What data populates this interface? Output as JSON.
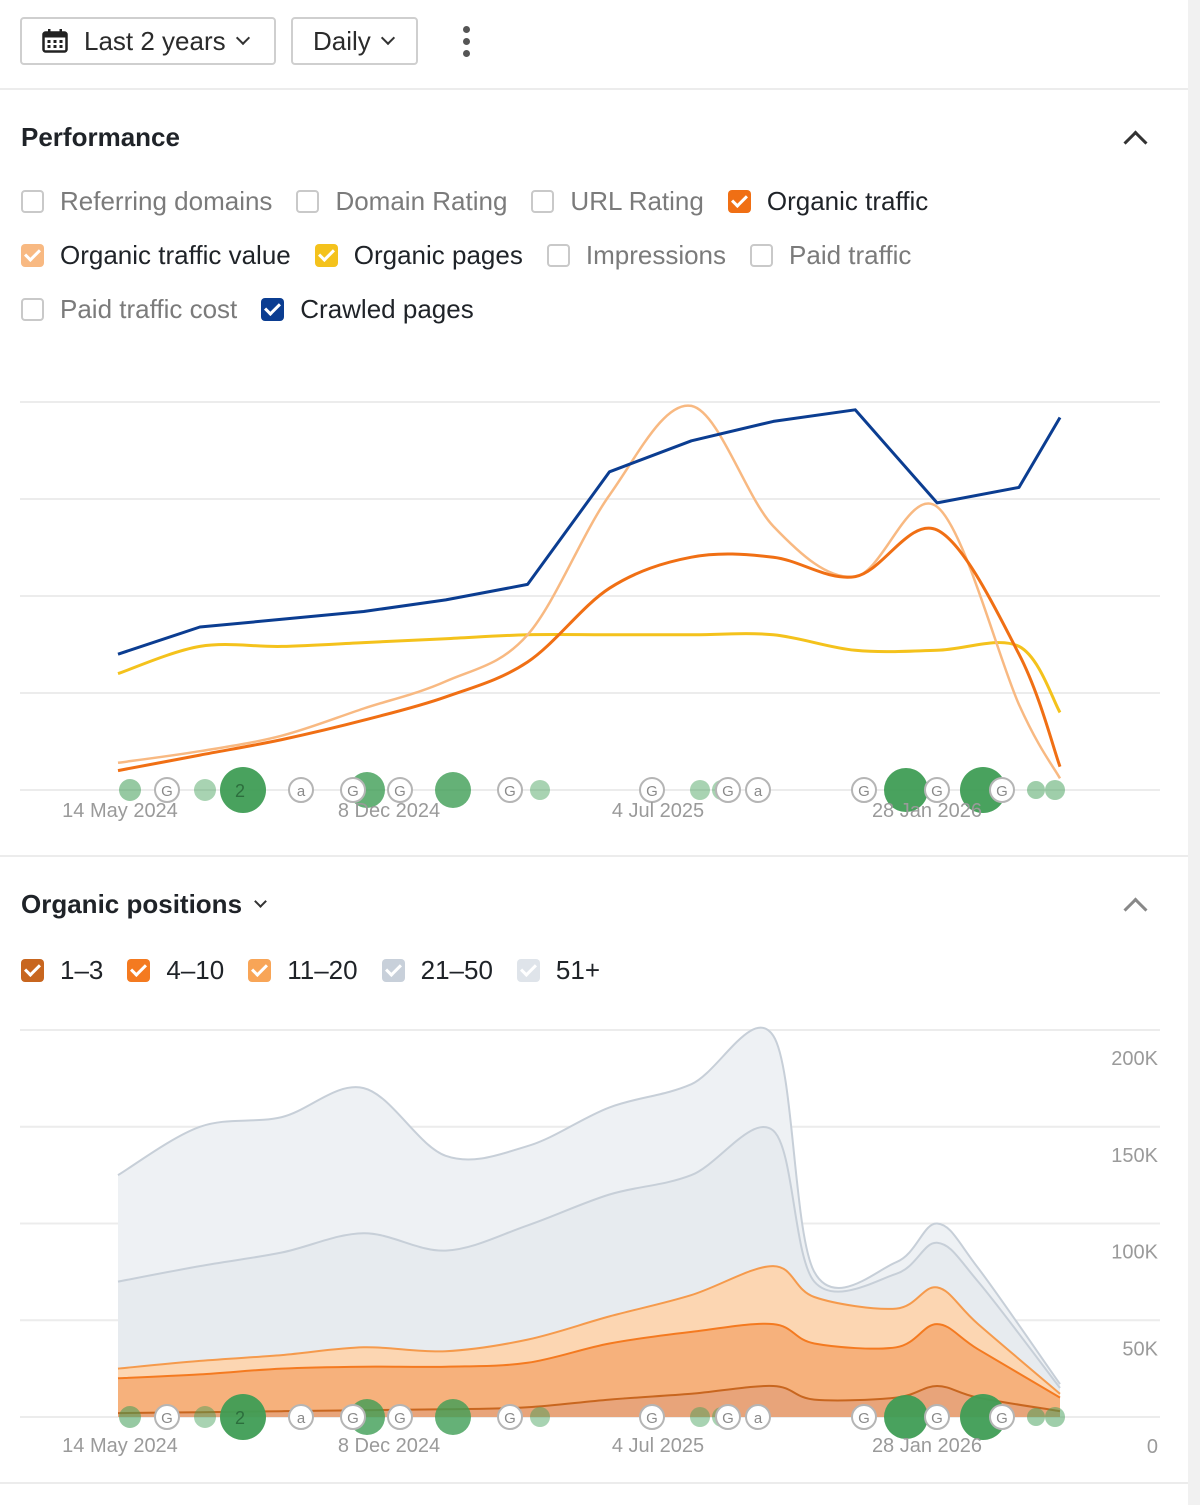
{
  "toolbar": {
    "range_label": "Last 2 years",
    "interval_label": "Daily"
  },
  "performance": {
    "title": "Performance",
    "metrics": [
      {
        "label": "Referring domains",
        "checked": false,
        "color": ""
      },
      {
        "label": "Domain Rating",
        "checked": false,
        "color": ""
      },
      {
        "label": "URL Rating",
        "checked": false,
        "color": ""
      },
      {
        "label": "Organic traffic",
        "checked": true,
        "color": "#f06f14"
      },
      {
        "label": "Organic traffic value",
        "checked": true,
        "color": "#f8b982"
      },
      {
        "label": "Organic pages",
        "checked": true,
        "color": "#f4c21c"
      },
      {
        "label": "Impressions",
        "checked": false,
        "color": ""
      },
      {
        "label": "Paid traffic",
        "checked": false,
        "color": ""
      },
      {
        "label": "Paid traffic cost",
        "checked": false,
        "color": ""
      },
      {
        "label": "Crawled pages",
        "checked": true,
        "color": "#0b3d91"
      }
    ],
    "x_ticks": [
      "14 May 2024",
      "8 Dec 2024",
      "4 Jul 2025",
      "28 Jan 2026"
    ],
    "event_markers": {
      "labels": [
        "2",
        "a",
        "G"
      ]
    }
  },
  "positions": {
    "title": "Organic positions",
    "buckets": [
      {
        "label": "1–3",
        "checked": true,
        "color": "#c8661f"
      },
      {
        "label": "4–10",
        "checked": true,
        "color": "#f47a20"
      },
      {
        "label": "11–20",
        "checked": true,
        "color": "#f8a557"
      },
      {
        "label": "21–50",
        "checked": true,
        "color": "#c8d0da"
      },
      {
        "label": "51+",
        "checked": true,
        "color": "#dfe4ea"
      }
    ],
    "x_ticks": [
      "14 May 2024",
      "8 Dec 2024",
      "4 Jul 2025",
      "28 Jan 2026"
    ],
    "y_ticks": [
      "200K",
      "150K",
      "100K",
      "50K",
      "0"
    ]
  },
  "chart_data": [
    {
      "type": "line",
      "title": "",
      "x_ticks": [
        "14 May 2024",
        "8 Dec 2024",
        "4 Jul 2025",
        "28 Jan 2026"
      ],
      "y_axis": "hidden (independent scales per series, normalized 0-1)",
      "x": [
        "2024-05",
        "2024-07",
        "2024-09",
        "2024-11",
        "2025-01",
        "2025-03",
        "2025-05",
        "2025-07",
        "2025-09",
        "2025-11",
        "2026-01",
        "2026-03",
        "2026-04"
      ],
      "series": [
        {
          "name": "Crawled pages",
          "color": "#0b3d91",
          "values": [
            0.35,
            0.42,
            0.44,
            0.46,
            0.49,
            0.53,
            0.82,
            0.9,
            0.95,
            0.98,
            0.74,
            0.78,
            0.96
          ]
        },
        {
          "name": "Organic pages",
          "color": "#f4c21c",
          "values": [
            0.3,
            0.37,
            0.37,
            0.38,
            0.39,
            0.4,
            0.4,
            0.4,
            0.4,
            0.36,
            0.36,
            0.37,
            0.2
          ]
        },
        {
          "name": "Organic traffic",
          "color": "#f06f14",
          "values": [
            0.05,
            0.09,
            0.13,
            0.18,
            0.24,
            0.33,
            0.52,
            0.6,
            0.6,
            0.55,
            0.67,
            0.35,
            0.06
          ]
        },
        {
          "name": "Organic traffic value",
          "color": "#f8b982",
          "values": [
            0.07,
            0.1,
            0.14,
            0.21,
            0.28,
            0.4,
            0.76,
            0.99,
            0.68,
            0.55,
            0.73,
            0.22,
            0.03
          ]
        }
      ]
    },
    {
      "type": "area",
      "title": "",
      "x_ticks": [
        "14 May 2024",
        "8 Dec 2024",
        "4 Jul 2025",
        "28 Jan 2026"
      ],
      "ylim": [
        0,
        200000
      ],
      "y_ticks": [
        0,
        50000,
        100000,
        150000,
        200000
      ],
      "stacked": true,
      "x": [
        "2024-05",
        "2024-07",
        "2024-09",
        "2024-11",
        "2025-01",
        "2025-03",
        "2025-05",
        "2025-07",
        "2025-09",
        "2025-10",
        "2025-12",
        "2026-01",
        "2026-02",
        "2026-04"
      ],
      "series": [
        {
          "name": "1–3",
          "color": "#c8661f",
          "values": [
            2000,
            2500,
            3000,
            3500,
            4000,
            5000,
            9000,
            12000,
            16000,
            9000,
            10000,
            16000,
            10000,
            3000
          ]
        },
        {
          "name": "4–10",
          "color": "#f47a20",
          "values": [
            20000,
            22000,
            25000,
            26000,
            26000,
            28000,
            38000,
            44000,
            48000,
            38000,
            36000,
            48000,
            35000,
            10000
          ]
        },
        {
          "name": "11–20",
          "color": "#f8a557",
          "values": [
            25000,
            29000,
            32000,
            36000,
            34000,
            40000,
            52000,
            63000,
            78000,
            62000,
            56000,
            67000,
            48000,
            12000
          ]
        },
        {
          "name": "21–50",
          "color": "#c8d0da",
          "values": [
            70000,
            78000,
            85000,
            95000,
            86000,
            99000,
            115000,
            125000,
            148000,
            70000,
            74000,
            90000,
            70000,
            15000
          ]
        },
        {
          "name": "51+",
          "color": "#dfe4ea",
          "values": [
            125000,
            150000,
            155000,
            170000,
            135000,
            140000,
            160000,
            172000,
            197000,
            75000,
            80000,
            100000,
            77000,
            17000
          ]
        }
      ]
    }
  ]
}
